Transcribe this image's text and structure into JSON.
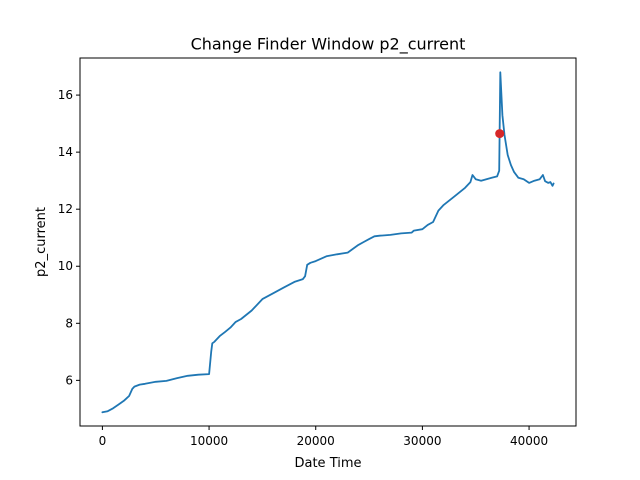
{
  "chart_data": {
    "type": "line",
    "title": "Change Finder Window p2_current",
    "xlabel": "Date Time",
    "ylabel": "p2_current",
    "xlim": [
      -2100,
      44400
    ],
    "ylim": [
      4.4,
      17.3
    ],
    "x_ticks": [
      0,
      10000,
      20000,
      30000,
      40000
    ],
    "y_ticks": [
      6,
      8,
      10,
      12,
      14,
      16
    ],
    "x_tick_labels": [
      "0",
      "10000",
      "20000",
      "30000",
      "40000"
    ],
    "y_tick_labels": [
      "6",
      "8",
      "10",
      "12",
      "14",
      "16"
    ],
    "grid": false,
    "series": [
      {
        "color": "#1f77b4",
        "x": [
          0,
          500,
          1000,
          1500,
          2000,
          2500,
          2800,
          3000,
          3500,
          4000,
          5000,
          6000,
          7000,
          8000,
          9000,
          10000,
          10200,
          10300,
          10500,
          11000,
          11500,
          12000,
          12500,
          13000,
          14000,
          15000,
          16000,
          17000,
          18000,
          18800,
          19000,
          19200,
          19500,
          20000,
          21000,
          22000,
          23000,
          24000,
          24500,
          25000,
          25500,
          26000,
          27000,
          28000,
          29000,
          29200,
          30000,
          30500,
          31000,
          31500,
          32000,
          33000,
          34000,
          34500,
          34700,
          35000,
          35500,
          36000,
          36500,
          37000,
          37200,
          37300,
          37500,
          37700,
          38000,
          38300,
          38600,
          39000,
          39500,
          40000,
          40500,
          41000,
          41300,
          41500,
          41800,
          42000,
          42200,
          42300
        ],
        "y": [
          4.88,
          4.92,
          5.02,
          5.15,
          5.28,
          5.45,
          5.7,
          5.78,
          5.85,
          5.88,
          5.95,
          5.98,
          6.08,
          6.16,
          6.2,
          6.22,
          7.0,
          7.3,
          7.35,
          7.55,
          7.7,
          7.85,
          8.05,
          8.15,
          8.45,
          8.85,
          9.05,
          9.25,
          9.45,
          9.55,
          9.65,
          10.05,
          10.12,
          10.18,
          10.35,
          10.42,
          10.48,
          10.75,
          10.85,
          10.95,
          11.05,
          11.07,
          11.1,
          11.15,
          11.18,
          11.25,
          11.3,
          11.45,
          11.55,
          11.95,
          12.15,
          12.45,
          12.75,
          12.95,
          13.2,
          13.05,
          13.0,
          13.05,
          13.1,
          13.15,
          13.35,
          16.8,
          15.3,
          14.6,
          13.9,
          13.55,
          13.3,
          13.1,
          13.05,
          12.92,
          13.0,
          13.05,
          13.2,
          12.98,
          12.92,
          12.95,
          12.82,
          12.9
        ]
      }
    ],
    "highlight_points": [
      {
        "x": 37250,
        "y": 14.65,
        "color": "#d62728"
      }
    ]
  }
}
